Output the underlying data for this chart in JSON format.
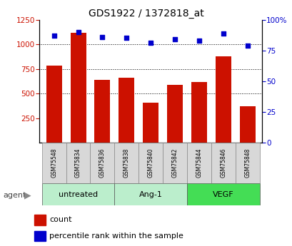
{
  "title": "GDS1922 / 1372818_at",
  "samples": [
    "GSM75548",
    "GSM75834",
    "GSM75836",
    "GSM75838",
    "GSM75840",
    "GSM75842",
    "GSM75844",
    "GSM75846",
    "GSM75848"
  ],
  "counts": [
    780,
    1120,
    640,
    660,
    410,
    590,
    620,
    880,
    370
  ],
  "percentiles": [
    87,
    90,
    86,
    85,
    81,
    84,
    83,
    89,
    79
  ],
  "bar_color": "#cc1100",
  "dot_color": "#0000cc",
  "ylim_left": [
    0,
    1250
  ],
  "ylim_right": [
    0,
    100
  ],
  "yticks_left": [
    250,
    500,
    750,
    1000,
    1250
  ],
  "yticks_right": [
    0,
    25,
    50,
    75,
    100
  ],
  "grid_values": [
    500,
    750,
    1000
  ],
  "group_defs": [
    {
      "label": "untreated",
      "start": 0,
      "end": 2,
      "color": "#bbeecc"
    },
    {
      "label": "Ang-1",
      "start": 3,
      "end": 5,
      "color": "#bbeecc"
    },
    {
      "label": "VEGF",
      "start": 6,
      "end": 8,
      "color": "#44dd55"
    }
  ],
  "sample_box_color": "#d8d8d8",
  "legend_count": "count",
  "legend_pct": "percentile rank within the sample",
  "background_color": "#ffffff"
}
